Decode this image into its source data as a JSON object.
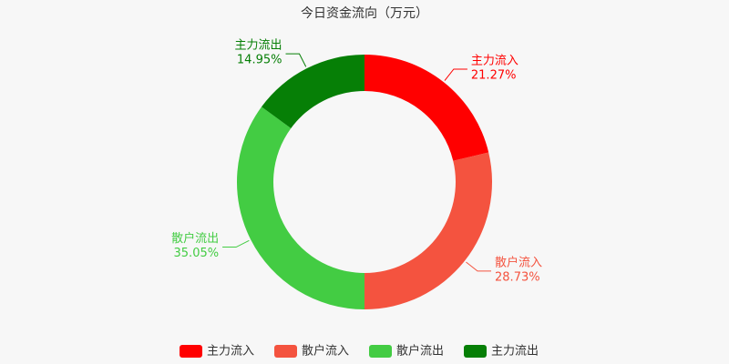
{
  "chart_data": {
    "type": "donut",
    "title": "今日资金流向（万元）",
    "categories": [
      "主力流入",
      "散户流入",
      "散户流出",
      "主力流出"
    ],
    "values": [
      21.27,
      28.73,
      35.05,
      14.95
    ],
    "value_labels": [
      "21.27%",
      "28.73%",
      "35.05%",
      "14.95%"
    ],
    "colors": [
      "#ff0000",
      "#f4533f",
      "#43cc43",
      "#067f06"
    ],
    "legend": "bottom"
  }
}
